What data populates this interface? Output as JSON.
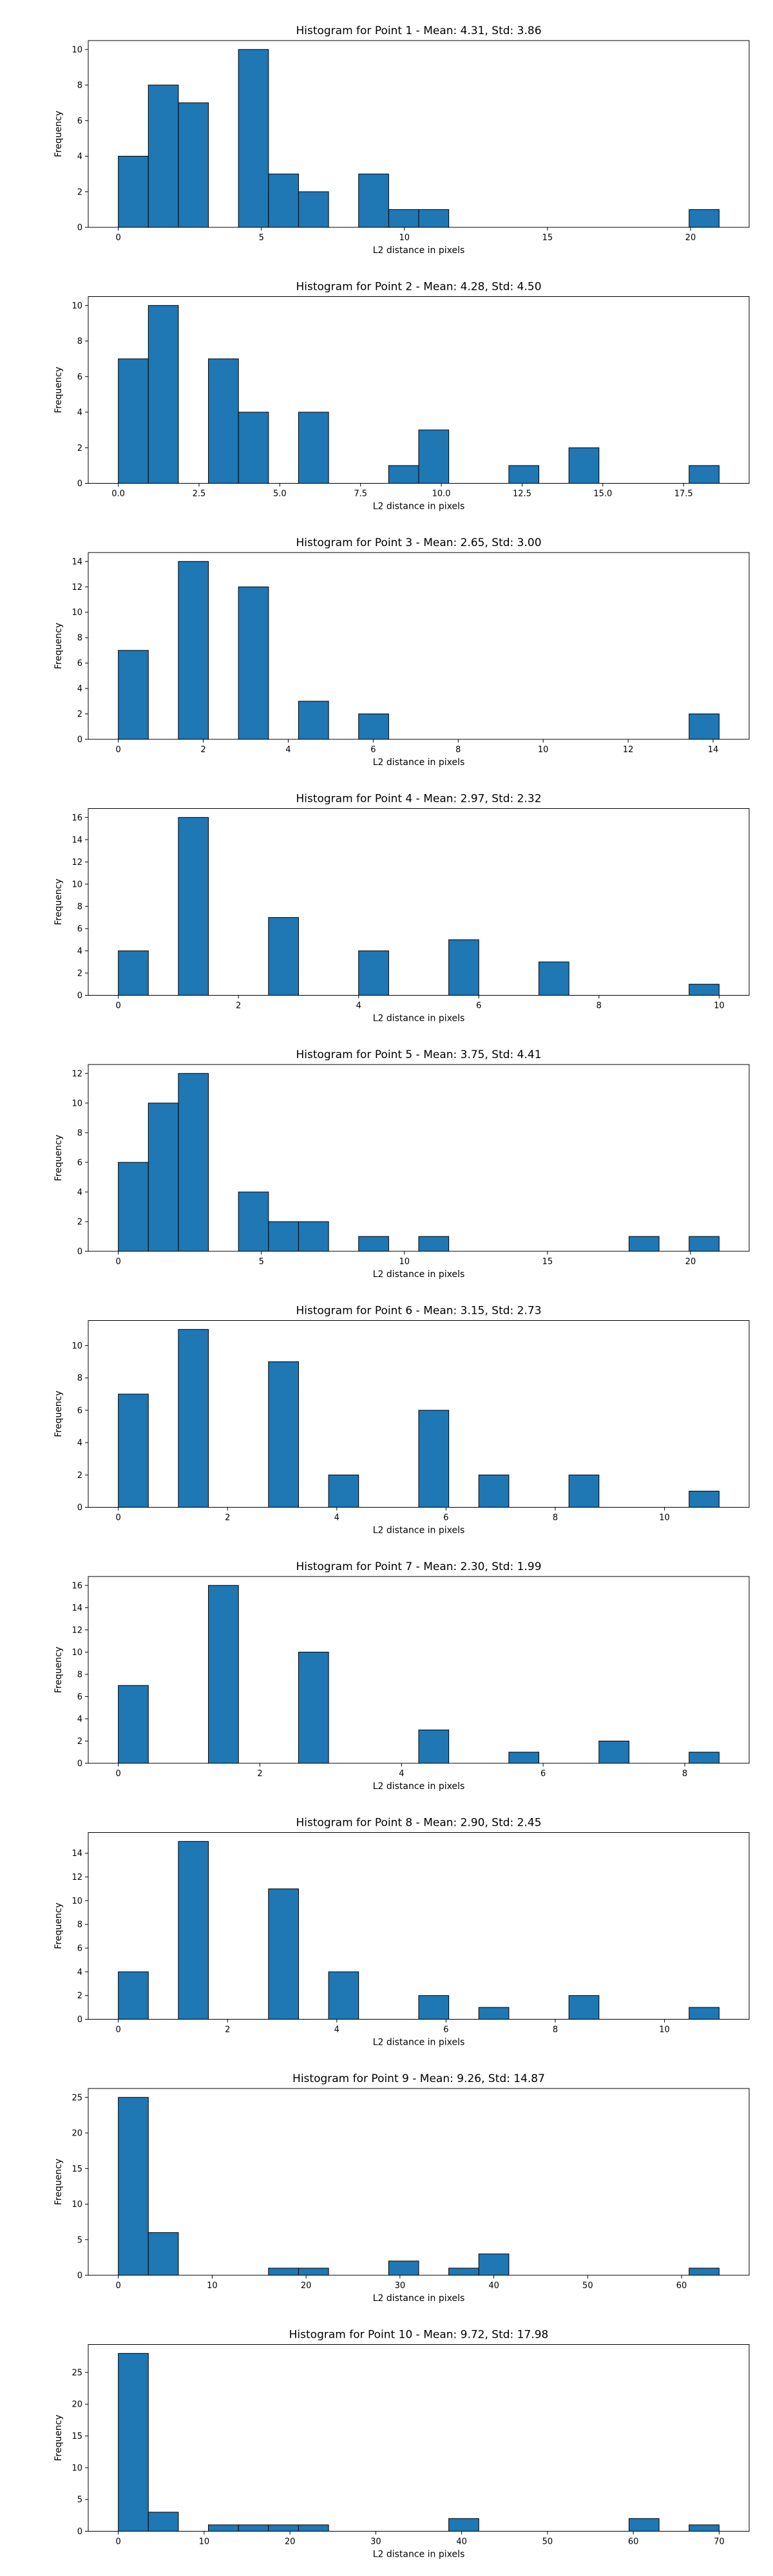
{
  "style": {
    "bar_fill": "#1f77b4",
    "bar_edge": "#000000",
    "axes_color": "#000000",
    "background": "#ffffff"
  },
  "chart_data": [
    {
      "type": "bar",
      "title": "Histogram for Point 1 - Mean: 4.31, Std: 3.86",
      "xlabel": "L2 distance in pixels",
      "ylabel": "Frequency",
      "grid": false,
      "xlim": [
        -1.05,
        22.05
      ],
      "ylim": [
        0,
        10.5
      ],
      "xticks": [
        0,
        5,
        10,
        15,
        20
      ],
      "yticks": [
        0,
        2,
        4,
        6,
        8,
        10
      ],
      "bin_edges": [
        0.0,
        1.05,
        2.1,
        3.15,
        4.2,
        5.25,
        6.3,
        7.35,
        8.4,
        9.45,
        10.5,
        11.55,
        12.6,
        13.65,
        14.7,
        15.75,
        16.8,
        17.85,
        18.9,
        19.95,
        21.0
      ],
      "values": [
        4,
        8,
        7,
        0,
        10,
        3,
        2,
        0,
        3,
        1,
        1,
        0,
        0,
        0,
        0,
        0,
        0,
        0,
        0,
        1
      ]
    },
    {
      "type": "bar",
      "title": "Histogram for Point 2 - Mean: 4.28, Std: 4.50",
      "xlabel": "L2 distance in pixels",
      "ylabel": "Frequency",
      "grid": false,
      "xlim": [
        -0.93,
        19.53
      ],
      "ylim": [
        0,
        10.5
      ],
      "xticks": [
        0.0,
        2.5,
        5.0,
        7.5,
        10.0,
        12.5,
        15.0,
        17.5
      ],
      "yticks": [
        0,
        2,
        4,
        6,
        8,
        10
      ],
      "bin_edges": [
        0.0,
        0.93,
        1.86,
        2.79,
        3.72,
        4.65,
        5.58,
        6.51,
        7.44,
        8.37,
        9.3,
        10.23,
        11.16,
        12.09,
        13.02,
        13.95,
        14.88,
        15.81,
        16.74,
        17.67,
        18.6
      ],
      "values": [
        7,
        10,
        0,
        7,
        4,
        0,
        4,
        0,
        0,
        1,
        3,
        0,
        0,
        1,
        0,
        2,
        0,
        0,
        0,
        1
      ]
    },
    {
      "type": "bar",
      "title": "Histogram for Point 3 - Mean: 2.65, Std: 3.00",
      "xlabel": "L2 distance in pixels",
      "ylabel": "Frequency",
      "grid": false,
      "xlim": [
        -0.707,
        14.849
      ],
      "ylim": [
        0,
        14.7
      ],
      "xticks": [
        0,
        2,
        4,
        6,
        8,
        10,
        12,
        14
      ],
      "yticks": [
        0,
        2,
        4,
        6,
        8,
        10,
        12,
        14
      ],
      "bin_edges": [
        0.0,
        0.707,
        1.414,
        2.121,
        2.828,
        3.536,
        4.243,
        4.95,
        5.657,
        6.364,
        7.071,
        7.778,
        8.485,
        9.192,
        9.899,
        10.607,
        11.314,
        12.021,
        12.728,
        13.435,
        14.142
      ],
      "values": [
        7,
        0,
        14,
        0,
        12,
        0,
        3,
        0,
        2,
        0,
        0,
        0,
        0,
        0,
        0,
        0,
        0,
        0,
        0,
        2
      ]
    },
    {
      "type": "bar",
      "title": "Histogram for Point 4 - Mean: 2.97, Std: 2.32",
      "xlabel": "L2 distance in pixels",
      "ylabel": "Frequency",
      "grid": false,
      "xlim": [
        -0.5,
        10.5
      ],
      "ylim": [
        0,
        16.8
      ],
      "xticks": [
        0,
        2,
        4,
        6,
        8,
        10
      ],
      "yticks": [
        0,
        2,
        4,
        6,
        8,
        10,
        12,
        14,
        16
      ],
      "bin_edges": [
        0.0,
        0.5,
        1.0,
        1.5,
        2.0,
        2.5,
        3.0,
        3.5,
        4.0,
        4.5,
        5.0,
        5.5,
        6.0,
        6.5,
        7.0,
        7.5,
        8.0,
        8.5,
        9.0,
        9.5,
        10.0
      ],
      "values": [
        4,
        0,
        16,
        0,
        0,
        7,
        0,
        0,
        4,
        0,
        0,
        5,
        0,
        0,
        3,
        0,
        0,
        0,
        0,
        1
      ]
    },
    {
      "type": "bar",
      "title": "Histogram for Point 5 - Mean: 3.75, Std: 4.41",
      "xlabel": "L2 distance in pixels",
      "ylabel": "Frequency",
      "grid": false,
      "xlim": [
        -1.05,
        22.05
      ],
      "ylim": [
        0,
        12.6
      ],
      "xticks": [
        0,
        5,
        10,
        15,
        20
      ],
      "yticks": [
        0,
        2,
        4,
        6,
        8,
        10,
        12
      ],
      "bin_edges": [
        0.0,
        1.05,
        2.1,
        3.15,
        4.2,
        5.25,
        6.3,
        7.35,
        8.4,
        9.45,
        10.5,
        11.55,
        12.6,
        13.65,
        14.7,
        15.75,
        16.8,
        17.85,
        18.9,
        19.95,
        21.0
      ],
      "values": [
        6,
        10,
        12,
        0,
        4,
        2,
        2,
        0,
        1,
        0,
        1,
        0,
        0,
        0,
        0,
        0,
        0,
        1,
        0,
        1
      ]
    },
    {
      "type": "bar",
      "title": "Histogram for Point 6 - Mean: 3.15, Std: 2.73",
      "xlabel": "L2 distance in pixels",
      "ylabel": "Frequency",
      "grid": false,
      "xlim": [
        -0.55,
        11.55
      ],
      "ylim": [
        0,
        11.55
      ],
      "xticks": [
        0,
        2,
        4,
        6,
        8,
        10
      ],
      "yticks": [
        0,
        2,
        4,
        6,
        8,
        10
      ],
      "bin_edges": [
        0.0,
        0.55,
        1.1,
        1.65,
        2.2,
        2.75,
        3.3,
        3.85,
        4.4,
        4.95,
        5.5,
        6.05,
        6.6,
        7.15,
        7.7,
        8.25,
        8.8,
        9.35,
        9.9,
        10.45,
        11.0
      ],
      "values": [
        7,
        0,
        11,
        0,
        0,
        9,
        0,
        2,
        0,
        0,
        6,
        0,
        2,
        0,
        0,
        2,
        0,
        0,
        0,
        1
      ]
    },
    {
      "type": "bar",
      "title": "Histogram for Point 7 - Mean: 2.30, Std: 1.99",
      "xlabel": "L2 distance in pixels",
      "ylabel": "Frequency",
      "grid": false,
      "xlim": [
        -0.4243,
        8.9095
      ],
      "ylim": [
        0,
        16.8
      ],
      "xticks": [
        0,
        2,
        4,
        6,
        8
      ],
      "yticks": [
        0,
        2,
        4,
        6,
        8,
        10,
        12,
        14,
        16
      ],
      "bin_edges": [
        0.0,
        0.4243,
        0.8485,
        1.2728,
        1.6971,
        2.1213,
        2.5456,
        2.9698,
        3.3941,
        3.8184,
        4.2426,
        4.6669,
        5.0912,
        5.5154,
        5.9397,
        6.364,
        6.7882,
        7.2125,
        7.6368,
        8.061,
        8.4853
      ],
      "values": [
        7,
        0,
        0,
        16,
        0,
        0,
        10,
        0,
        0,
        0,
        3,
        0,
        0,
        1,
        0,
        0,
        2,
        0,
        0,
        1
      ]
    },
    {
      "type": "bar",
      "title": "Histogram for Point 8 - Mean: 2.90, Std: 2.45",
      "xlabel": "L2 distance in pixels",
      "ylabel": "Frequency",
      "grid": false,
      "xlim": [
        -0.55,
        11.55
      ],
      "ylim": [
        0,
        15.75
      ],
      "xticks": [
        0,
        2,
        4,
        6,
        8,
        10
      ],
      "yticks": [
        0,
        2,
        4,
        6,
        8,
        10,
        12,
        14
      ],
      "bin_edges": [
        0.0,
        0.55,
        1.1,
        1.65,
        2.2,
        2.75,
        3.3,
        3.85,
        4.4,
        4.95,
        5.5,
        6.05,
        6.6,
        7.15,
        7.7,
        8.25,
        8.8,
        9.35,
        9.9,
        10.45,
        11.0
      ],
      "values": [
        4,
        0,
        15,
        0,
        0,
        11,
        0,
        4,
        0,
        0,
        2,
        0,
        1,
        0,
        0,
        2,
        0,
        0,
        0,
        1
      ]
    },
    {
      "type": "bar",
      "title": "Histogram for Point 9 - Mean: 9.26, Std: 14.87",
      "xlabel": "L2 distance in pixels",
      "ylabel": "Frequency",
      "grid": false,
      "xlim": [
        -3.2,
        67.2
      ],
      "ylim": [
        0,
        26.25
      ],
      "xticks": [
        0,
        10,
        20,
        30,
        40,
        50,
        60
      ],
      "yticks": [
        0,
        5,
        10,
        15,
        20,
        25
      ],
      "bin_edges": [
        0.0,
        3.2,
        6.4,
        9.6,
        12.8,
        16.0,
        19.2,
        22.4,
        25.6,
        28.8,
        32.0,
        35.2,
        38.4,
        41.6,
        44.8,
        48.0,
        51.2,
        54.4,
        57.6,
        60.8,
        64.0
      ],
      "values": [
        25,
        6,
        0,
        0,
        0,
        1,
        1,
        0,
        0,
        2,
        0,
        1,
        3,
        0,
        0,
        0,
        0,
        0,
        0,
        1
      ]
    },
    {
      "type": "bar",
      "title": "Histogram for Point 10 - Mean: 9.72, Std: 17.98",
      "xlabel": "L2 distance in pixels",
      "ylabel": "Frequency",
      "grid": false,
      "xlim": [
        -3.5,
        73.5
      ],
      "ylim": [
        0,
        29.4
      ],
      "xticks": [
        0,
        10,
        20,
        30,
        40,
        50,
        60,
        70
      ],
      "yticks": [
        0,
        5,
        10,
        15,
        20,
        25
      ],
      "bin_edges": [
        0.0,
        3.5,
        7.0,
        10.5,
        14.0,
        17.5,
        21.0,
        24.5,
        28.0,
        31.5,
        35.0,
        38.5,
        42.0,
        45.5,
        49.0,
        52.5,
        56.0,
        59.5,
        63.0,
        66.5,
        70.0
      ],
      "values": [
        28,
        3,
        0,
        1,
        1,
        1,
        1,
        0,
        0,
        0,
        0,
        2,
        0,
        0,
        0,
        0,
        0,
        2,
        0,
        1
      ]
    }
  ]
}
